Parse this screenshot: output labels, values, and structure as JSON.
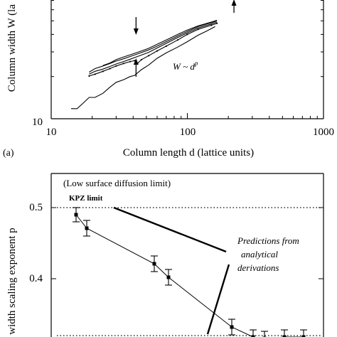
{
  "chart_data": [
    {
      "type": "line",
      "panel_label": "(a)",
      "xlabel": "Column length d (lattice units)",
      "ylabel": "Column width W (la",
      "xscale": "log",
      "yscale": "log",
      "xlim": [
        10,
        1000
      ],
      "ylim": [
        10,
        100
      ],
      "x_tick_labels": [
        "10",
        "100",
        "1000"
      ],
      "y_tick_labels": [
        "10"
      ],
      "annotation": "W ~ d",
      "annotation_superscript": "p",
      "series": [
        {
          "x": [
            14,
            15.5,
            17,
            19,
            21,
            24,
            27,
            30,
            34,
            38,
            41,
            43,
            46,
            52,
            60,
            70,
            85,
            100,
            120,
            140,
            160
          ],
          "y": [
            11.8,
            11.8,
            12.8,
            14.2,
            14.2,
            15.2,
            16.8,
            18.2,
            19.0,
            20.0,
            20.4,
            21.2,
            22.4,
            24.2,
            27.0,
            29.5,
            32.5,
            35.5,
            39.5,
            42.5,
            45.5
          ]
        },
        {
          "x": [
            19,
            21,
            24,
            27,
            30,
            34,
            38,
            41,
            43,
            46,
            52,
            60,
            70,
            85,
            100,
            120,
            150,
            165
          ],
          "y": [
            20.2,
            20.8,
            21.8,
            22.8,
            23.8,
            24.8,
            25.6,
            26.0,
            24.8,
            26.4,
            28.2,
            30.5,
            33.0,
            36.5,
            40.0,
            43.5,
            46.5,
            48.0
          ]
        },
        {
          "x": [
            19,
            21,
            24,
            27,
            30,
            34,
            38,
            43,
            52,
            60,
            70,
            85,
            100,
            120,
            150,
            165
          ],
          "y": [
            20.8,
            21.8,
            22.6,
            23.6,
            24.6,
            25.6,
            26.6,
            27.8,
            29.8,
            32.0,
            34.5,
            38.0,
            41.0,
            44.5,
            47.5,
            49.0
          ]
        },
        {
          "x": [
            19,
            21,
            24,
            27,
            30,
            34,
            38,
            43,
            52,
            60,
            70,
            85,
            100,
            120,
            150,
            165
          ],
          "y": [
            21.5,
            22.8,
            23.8,
            24.8,
            25.8,
            26.8,
            27.8,
            29.0,
            31.0,
            33.0,
            35.5,
            39.0,
            42.0,
            45.5,
            48.5,
            50.0
          ]
        },
        {
          "x": [
            24,
            27,
            30,
            34,
            38,
            43,
            52,
            60,
            70,
            85,
            100,
            120,
            150,
            165
          ],
          "y": [
            24.0,
            25.0,
            26.4,
            27.6,
            28.6,
            29.8,
            31.8,
            34.0,
            36.5,
            40.0,
            43.0,
            46.0,
            49.0,
            50.5
          ]
        }
      ],
      "arrows": [
        {
          "x": 42,
          "direction": "down"
        },
        {
          "x": 42,
          "direction": "up"
        },
        {
          "x": 220,
          "direction": "up"
        }
      ]
    },
    {
      "type": "scatter",
      "xlabel": "",
      "ylabel": "n width scaling exponent p",
      "ylim": [
        0.3,
        0.55
      ],
      "y_tick_labels": [
        "0.5",
        "0.4"
      ],
      "reference_lines": [
        0.5,
        0.32
      ],
      "annotations": {
        "regime": "(Low surface diffusion limit)",
        "kpz": "KPZ limit",
        "predictions": [
          "Predictions from",
          "analytical",
          "derivations"
        ]
      },
      "points": [
        {
          "x": 1,
          "y": 0.49,
          "err": 0.01
        },
        {
          "x": 2,
          "y": 0.471,
          "err": 0.011
        },
        {
          "x": 3,
          "y": 0.421,
          "err": 0.011
        },
        {
          "x": 4,
          "y": 0.402,
          "err": 0.011
        },
        {
          "x": 5,
          "y": 0.332,
          "err": 0.011
        },
        {
          "x": 6,
          "y": 0.318,
          "err": 0.01
        },
        {
          "x": 7,
          "y": 0.316,
          "err": 0.01
        },
        {
          "x": 8,
          "y": 0.318,
          "err": 0.01
        },
        {
          "x": 9,
          "y": 0.318,
          "err": 0.01
        }
      ]
    }
  ]
}
